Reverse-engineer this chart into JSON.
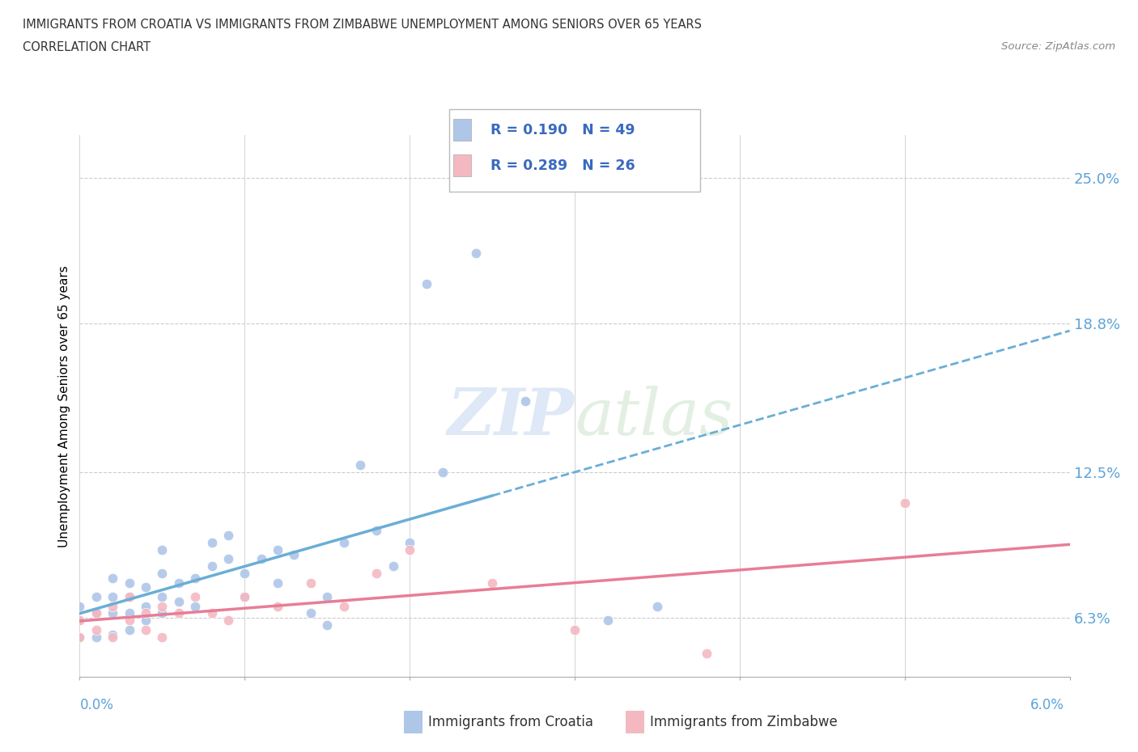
{
  "title_line1": "IMMIGRANTS FROM CROATIA VS IMMIGRANTS FROM ZIMBABWE UNEMPLOYMENT AMONG SENIORS OVER 65 YEARS",
  "title_line2": "CORRELATION CHART",
  "source": "Source: ZipAtlas.com",
  "ylabel": "Unemployment Among Seniors over 65 years",
  "yticks": [
    "6.3%",
    "12.5%",
    "18.8%",
    "25.0%"
  ],
  "ytick_vals": [
    0.063,
    0.125,
    0.188,
    0.25
  ],
  "xmin": 0.0,
  "xmax": 0.06,
  "ymin": 0.038,
  "ymax": 0.268,
  "croatia_color": "#aec6e8",
  "croatia_line_color": "#6aaed6",
  "zimbabwe_color": "#f4b8c1",
  "zimbabwe_line_color": "#e87d96",
  "croatia_R": 0.19,
  "croatia_N": 49,
  "zimbabwe_R": 0.289,
  "zimbabwe_N": 26,
  "legend_text_color": "#3a6abf",
  "croatia_x": [
    0.0,
    0.0,
    0.0,
    0.001,
    0.001,
    0.001,
    0.002,
    0.002,
    0.002,
    0.002,
    0.003,
    0.003,
    0.003,
    0.003,
    0.004,
    0.004,
    0.004,
    0.005,
    0.005,
    0.005,
    0.005,
    0.006,
    0.006,
    0.007,
    0.007,
    0.008,
    0.008,
    0.009,
    0.009,
    0.01,
    0.01,
    0.011,
    0.012,
    0.012,
    0.013,
    0.014,
    0.015,
    0.015,
    0.016,
    0.017,
    0.018,
    0.019,
    0.02,
    0.021,
    0.022,
    0.024,
    0.027,
    0.032,
    0.035
  ],
  "croatia_y": [
    0.055,
    0.062,
    0.068,
    0.055,
    0.065,
    0.072,
    0.056,
    0.065,
    0.072,
    0.08,
    0.058,
    0.065,
    0.072,
    0.078,
    0.062,
    0.068,
    0.076,
    0.065,
    0.072,
    0.082,
    0.092,
    0.07,
    0.078,
    0.068,
    0.08,
    0.085,
    0.095,
    0.088,
    0.098,
    0.072,
    0.082,
    0.088,
    0.078,
    0.092,
    0.09,
    0.065,
    0.06,
    0.072,
    0.095,
    0.128,
    0.1,
    0.085,
    0.095,
    0.205,
    0.125,
    0.218,
    0.155,
    0.062,
    0.068
  ],
  "zimbabwe_x": [
    0.0,
    0.0,
    0.001,
    0.001,
    0.002,
    0.002,
    0.003,
    0.003,
    0.004,
    0.004,
    0.005,
    0.005,
    0.006,
    0.007,
    0.008,
    0.009,
    0.01,
    0.012,
    0.014,
    0.016,
    0.018,
    0.02,
    0.025,
    0.03,
    0.038,
    0.05
  ],
  "zimbabwe_y": [
    0.055,
    0.062,
    0.058,
    0.065,
    0.055,
    0.068,
    0.062,
    0.072,
    0.058,
    0.065,
    0.055,
    0.068,
    0.065,
    0.072,
    0.065,
    0.062,
    0.072,
    0.068,
    0.078,
    0.068,
    0.082,
    0.092,
    0.078,
    0.058,
    0.048,
    0.112
  ]
}
